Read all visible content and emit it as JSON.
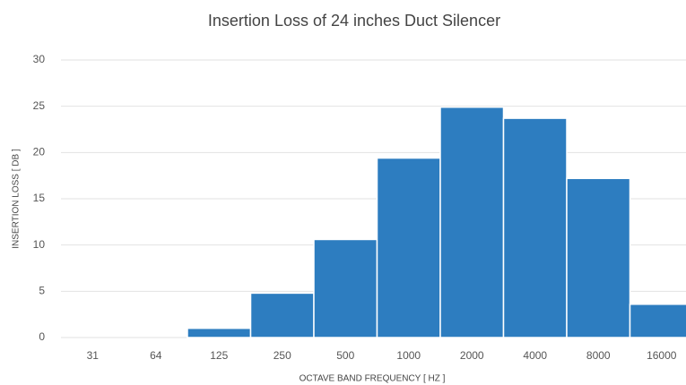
{
  "chart_data": {
    "type": "bar",
    "title": "Insertion Loss of 24 inches Duct Silencer",
    "xlabel": "OCTAVE BAND FREQUENCY [ HZ ]",
    "ylabel": "INSERTION LOSS [ DB ]",
    "categories": [
      "31",
      "64",
      "125",
      "250",
      "500",
      "1000",
      "2000",
      "4000",
      "8000",
      "16000"
    ],
    "values": [
      0,
      0,
      1,
      4.8,
      10.6,
      19.4,
      24.9,
      23.7,
      17.2,
      3.6
    ],
    "color": "#2d7dc0",
    "ylim": [
      0,
      30
    ],
    "yticks": [
      0,
      5,
      10,
      15,
      20,
      25,
      30
    ],
    "grid": true
  }
}
